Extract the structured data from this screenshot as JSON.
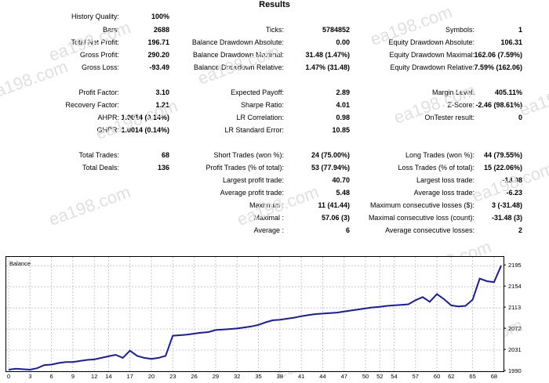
{
  "title": "Results",
  "stats": [
    {
      "key": "hq",
      "label": "History Quality:",
      "value": "100%"
    },
    {
      "key": "bars",
      "label": "Bars:",
      "value": "2688"
    },
    {
      "key": "ticks",
      "label": "Ticks:",
      "value": "5784852"
    },
    {
      "key": "symbols",
      "label": "Symbols:",
      "value": "1"
    },
    {
      "key": "tnp",
      "label": "Total Net Profit:",
      "value": "196.71"
    },
    {
      "key": "bda",
      "label": "Balance Drawdown Absolute:",
      "value": "0.00"
    },
    {
      "key": "eda",
      "label": "Equity Drawdown Absolute:",
      "value": "106.31"
    },
    {
      "key": "gp",
      "label": "Gross Profit:",
      "value": "290.20"
    },
    {
      "key": "bdm",
      "label": "Balance Drawdown Maximal:",
      "value": "31.48 (1.47%)"
    },
    {
      "key": "edm",
      "label": "Equity Drawdown Maximal:",
      "value": "162.06 (7.59%)"
    },
    {
      "key": "gl",
      "label": "Gross Loss:",
      "value": "-93.49"
    },
    {
      "key": "bdr",
      "label": "Balance Drawdown Relative:",
      "value": "1.47% (31.48)"
    },
    {
      "key": "edr",
      "label": "Equity Drawdown Relative:",
      "value": "7.59% (162.06)"
    },
    {
      "key": "pf",
      "label": "Profit Factor:",
      "value": "3.10"
    },
    {
      "key": "ep",
      "label": "Expected Payoff:",
      "value": "2.89"
    },
    {
      "key": "ml",
      "label": "Margin Level:",
      "value": "405.11%"
    },
    {
      "key": "rf",
      "label": "Recovery Factor:",
      "value": "1.21"
    },
    {
      "key": "sr",
      "label": "Sharpe Ratio:",
      "value": "4.01"
    },
    {
      "key": "zs",
      "label": "Z-Score:",
      "value": "-2.46 (98.61%)"
    },
    {
      "key": "ahpr",
      "label": "AHPR:",
      "value": "1.0014 (0.14%)"
    },
    {
      "key": "lrc",
      "label": "LR Correlation:",
      "value": "0.98"
    },
    {
      "key": "otr",
      "label": "OnTester result:",
      "value": "0"
    },
    {
      "key": "ghpr",
      "label": "GHPR:",
      "value": "1.0014 (0.14%)"
    },
    {
      "key": "lrse",
      "label": "LR Standard Error:",
      "value": "10.85"
    },
    {
      "key": "tt",
      "label": "Total Trades:",
      "value": "68"
    },
    {
      "key": "st",
      "label": "Short Trades (won %):",
      "value": "24 (75.00%)"
    },
    {
      "key": "lt",
      "label": "Long Trades (won %):",
      "value": "44 (79.55%)"
    },
    {
      "key": "td",
      "label": "Total Deals:",
      "value": "136"
    },
    {
      "key": "pt",
      "label": "Profit Trades (% of total):",
      "value": "53 (77.94%)"
    },
    {
      "key": "ltr",
      "label": "Loss Trades (% of total):",
      "value": "15 (22.06%)"
    },
    {
      "key": "lpt",
      "label": "Largest profit trade:",
      "value": "40.70"
    },
    {
      "key": "llt",
      "label": "Largest loss trade:",
      "value": "-18.08"
    },
    {
      "key": "apt",
      "label": "Average profit trade:",
      "value": "5.48"
    },
    {
      "key": "alt",
      "label": "Average loss trade:",
      "value": "-6.23"
    },
    {
      "key": "mcw",
      "label": "Maximum :",
      "value": "11 (41.44)"
    },
    {
      "key": "mcl",
      "label": "Maximum consecutive losses ($):",
      "value": "3 (-31.48)"
    },
    {
      "key": "mxw",
      "label": "Maximal :",
      "value": "57.06 (3)"
    },
    {
      "key": "mxl",
      "label": "Maximal consecutive loss (count):",
      "value": "-31.48 (3)"
    },
    {
      "key": "avw",
      "label": "Average :",
      "value": "6"
    },
    {
      "key": "avl",
      "label": "Average consecutive losses:",
      "value": "2"
    }
  ],
  "watermark": "ea198.com",
  "chart_data": {
    "type": "line",
    "title": "Balance",
    "xticks": [
      "0",
      "3",
      "6",
      "9",
      "12",
      "14",
      "17",
      "20",
      "23",
      "26",
      "29",
      "32",
      "35",
      "38",
      "41",
      "44",
      "47",
      "50",
      "52",
      "54",
      "57",
      "60",
      "62",
      "65",
      "68"
    ],
    "yticks": [
      "1990",
      "2031",
      "2072",
      "2113",
      "2154",
      "2195"
    ],
    "ylim": [
      1990,
      2206
    ],
    "xlim": [
      0,
      69
    ],
    "grid": true,
    "series": [
      {
        "color": "#1a1aa6",
        "x": [
          0,
          1,
          2,
          3,
          4,
          5,
          6,
          7,
          8,
          9,
          10,
          11,
          12,
          13,
          14,
          15,
          16,
          17,
          18,
          19,
          20,
          21,
          22,
          23,
          24,
          25,
          26,
          27,
          28,
          29,
          30,
          31,
          32,
          33,
          34,
          35,
          36,
          37,
          38,
          39,
          40,
          41,
          42,
          43,
          44,
          45,
          46,
          47,
          48,
          49,
          50,
          51,
          52,
          53,
          54,
          55,
          56,
          57,
          58,
          59,
          60,
          61,
          62,
          63,
          64,
          65,
          66,
          67,
          68,
          69
        ],
        "y": [
          1993,
          1995,
          1994,
          1993,
          1996,
          2002,
          2003,
          2006,
          2008,
          2008,
          2010,
          2012,
          2013,
          2016,
          2019,
          2022,
          2016,
          2030,
          2020,
          2016,
          2014,
          2016,
          2020,
          2059,
          2060,
          2061,
          2063,
          2065,
          2066,
          2070,
          2071,
          2072,
          2073,
          2075,
          2077,
          2080,
          2085,
          2089,
          2090,
          2092,
          2094,
          2097,
          2099,
          2101,
          2102,
          2103,
          2104,
          2106,
          2108,
          2110,
          2112,
          2114,
          2115,
          2117,
          2118,
          2119,
          2120,
          2128,
          2134,
          2125,
          2140,
          2130,
          2118,
          2116,
          2117,
          2129,
          2170,
          2165,
          2163,
          2195
        ]
      }
    ]
  }
}
